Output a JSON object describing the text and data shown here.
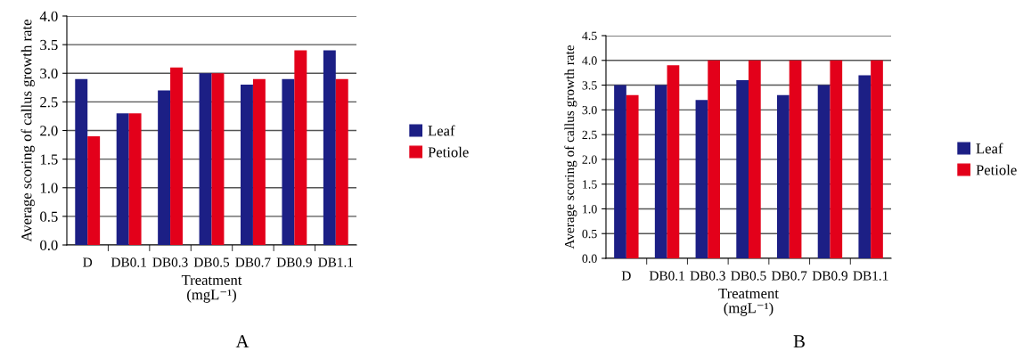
{
  "chart_data": [
    {
      "type": "bar",
      "categories": [
        "D",
        "DB0.1",
        "DB0.3",
        "DB0.5",
        "DB0.7",
        "DB0.9",
        "DB1.1"
      ],
      "xlabel": "Treatment\n(mgL⁻¹)",
      "ylabel": "Average scoring of callus growth rate",
      "ylim": [
        0,
        4.0
      ],
      "yticks": [
        {
          "value": 0,
          "label": "0.0"
        },
        {
          "value": 0.5,
          "label": "0.5"
        },
        {
          "value": 1,
          "label": "1.0"
        },
        {
          "value": 1.5,
          "label": "1.5"
        },
        {
          "value": 2,
          "label": "2.0"
        },
        {
          "value": 2.5,
          "label": "2.5"
        },
        {
          "value": 3,
          "label": "3.0"
        },
        {
          "value": 3.5,
          "label": "3.5"
        },
        {
          "value": 4,
          "label": "4.0"
        }
      ],
      "grid": "y",
      "legend": "right",
      "annotations": [
        "A"
      ],
      "series": [
        {
          "name": "Leaf",
          "color": "#1c1f85",
          "values": [
            2.9,
            2.3,
            2.7,
            3.0,
            2.8,
            2.9,
            3.4
          ]
        },
        {
          "name": "Petiole",
          "color": "#e3001a",
          "values": [
            1.9,
            2.3,
            3.1,
            3.0,
            2.9,
            3.4,
            2.9
          ]
        }
      ]
    },
    {
      "type": "bar",
      "categories": [
        "D",
        "DB0.1",
        "DB0.3",
        "DB0.5",
        "DB0.7",
        "DB0.9",
        "DB1.1"
      ],
      "xlabel": "Treatment\n(mgL⁻¹)",
      "ylabel": "Average scoring of callus growth rate",
      "ylim": [
        0,
        4.5
      ],
      "yticks": [
        {
          "value": 0,
          "label": "0.0"
        },
        {
          "value": 0.5,
          "label": "0.5"
        },
        {
          "value": 1,
          "label": "1.0"
        },
        {
          "value": 1.5,
          "label": "1.5"
        },
        {
          "value": 2,
          "label": "2.0"
        },
        {
          "value": 2.5,
          "label": "2.5"
        },
        {
          "value": 3,
          "label": "3.0"
        },
        {
          "value": 3.5,
          "label": "3.5"
        },
        {
          "value": 4,
          "label": "4.0"
        },
        {
          "value": 4.5,
          "label": "4.5"
        }
      ],
      "grid": "y",
      "legend": "right",
      "annotations": [
        "B"
      ],
      "series": [
        {
          "name": "Leaf",
          "color": "#1c1f85",
          "values": [
            3.5,
            3.5,
            3.2,
            3.6,
            3.3,
            3.5,
            3.7
          ]
        },
        {
          "name": "Petiole",
          "color": "#e3001a",
          "values": [
            3.3,
            3.9,
            4.0,
            4.0,
            4.0,
            4.0,
            4.0
          ]
        }
      ]
    }
  ]
}
